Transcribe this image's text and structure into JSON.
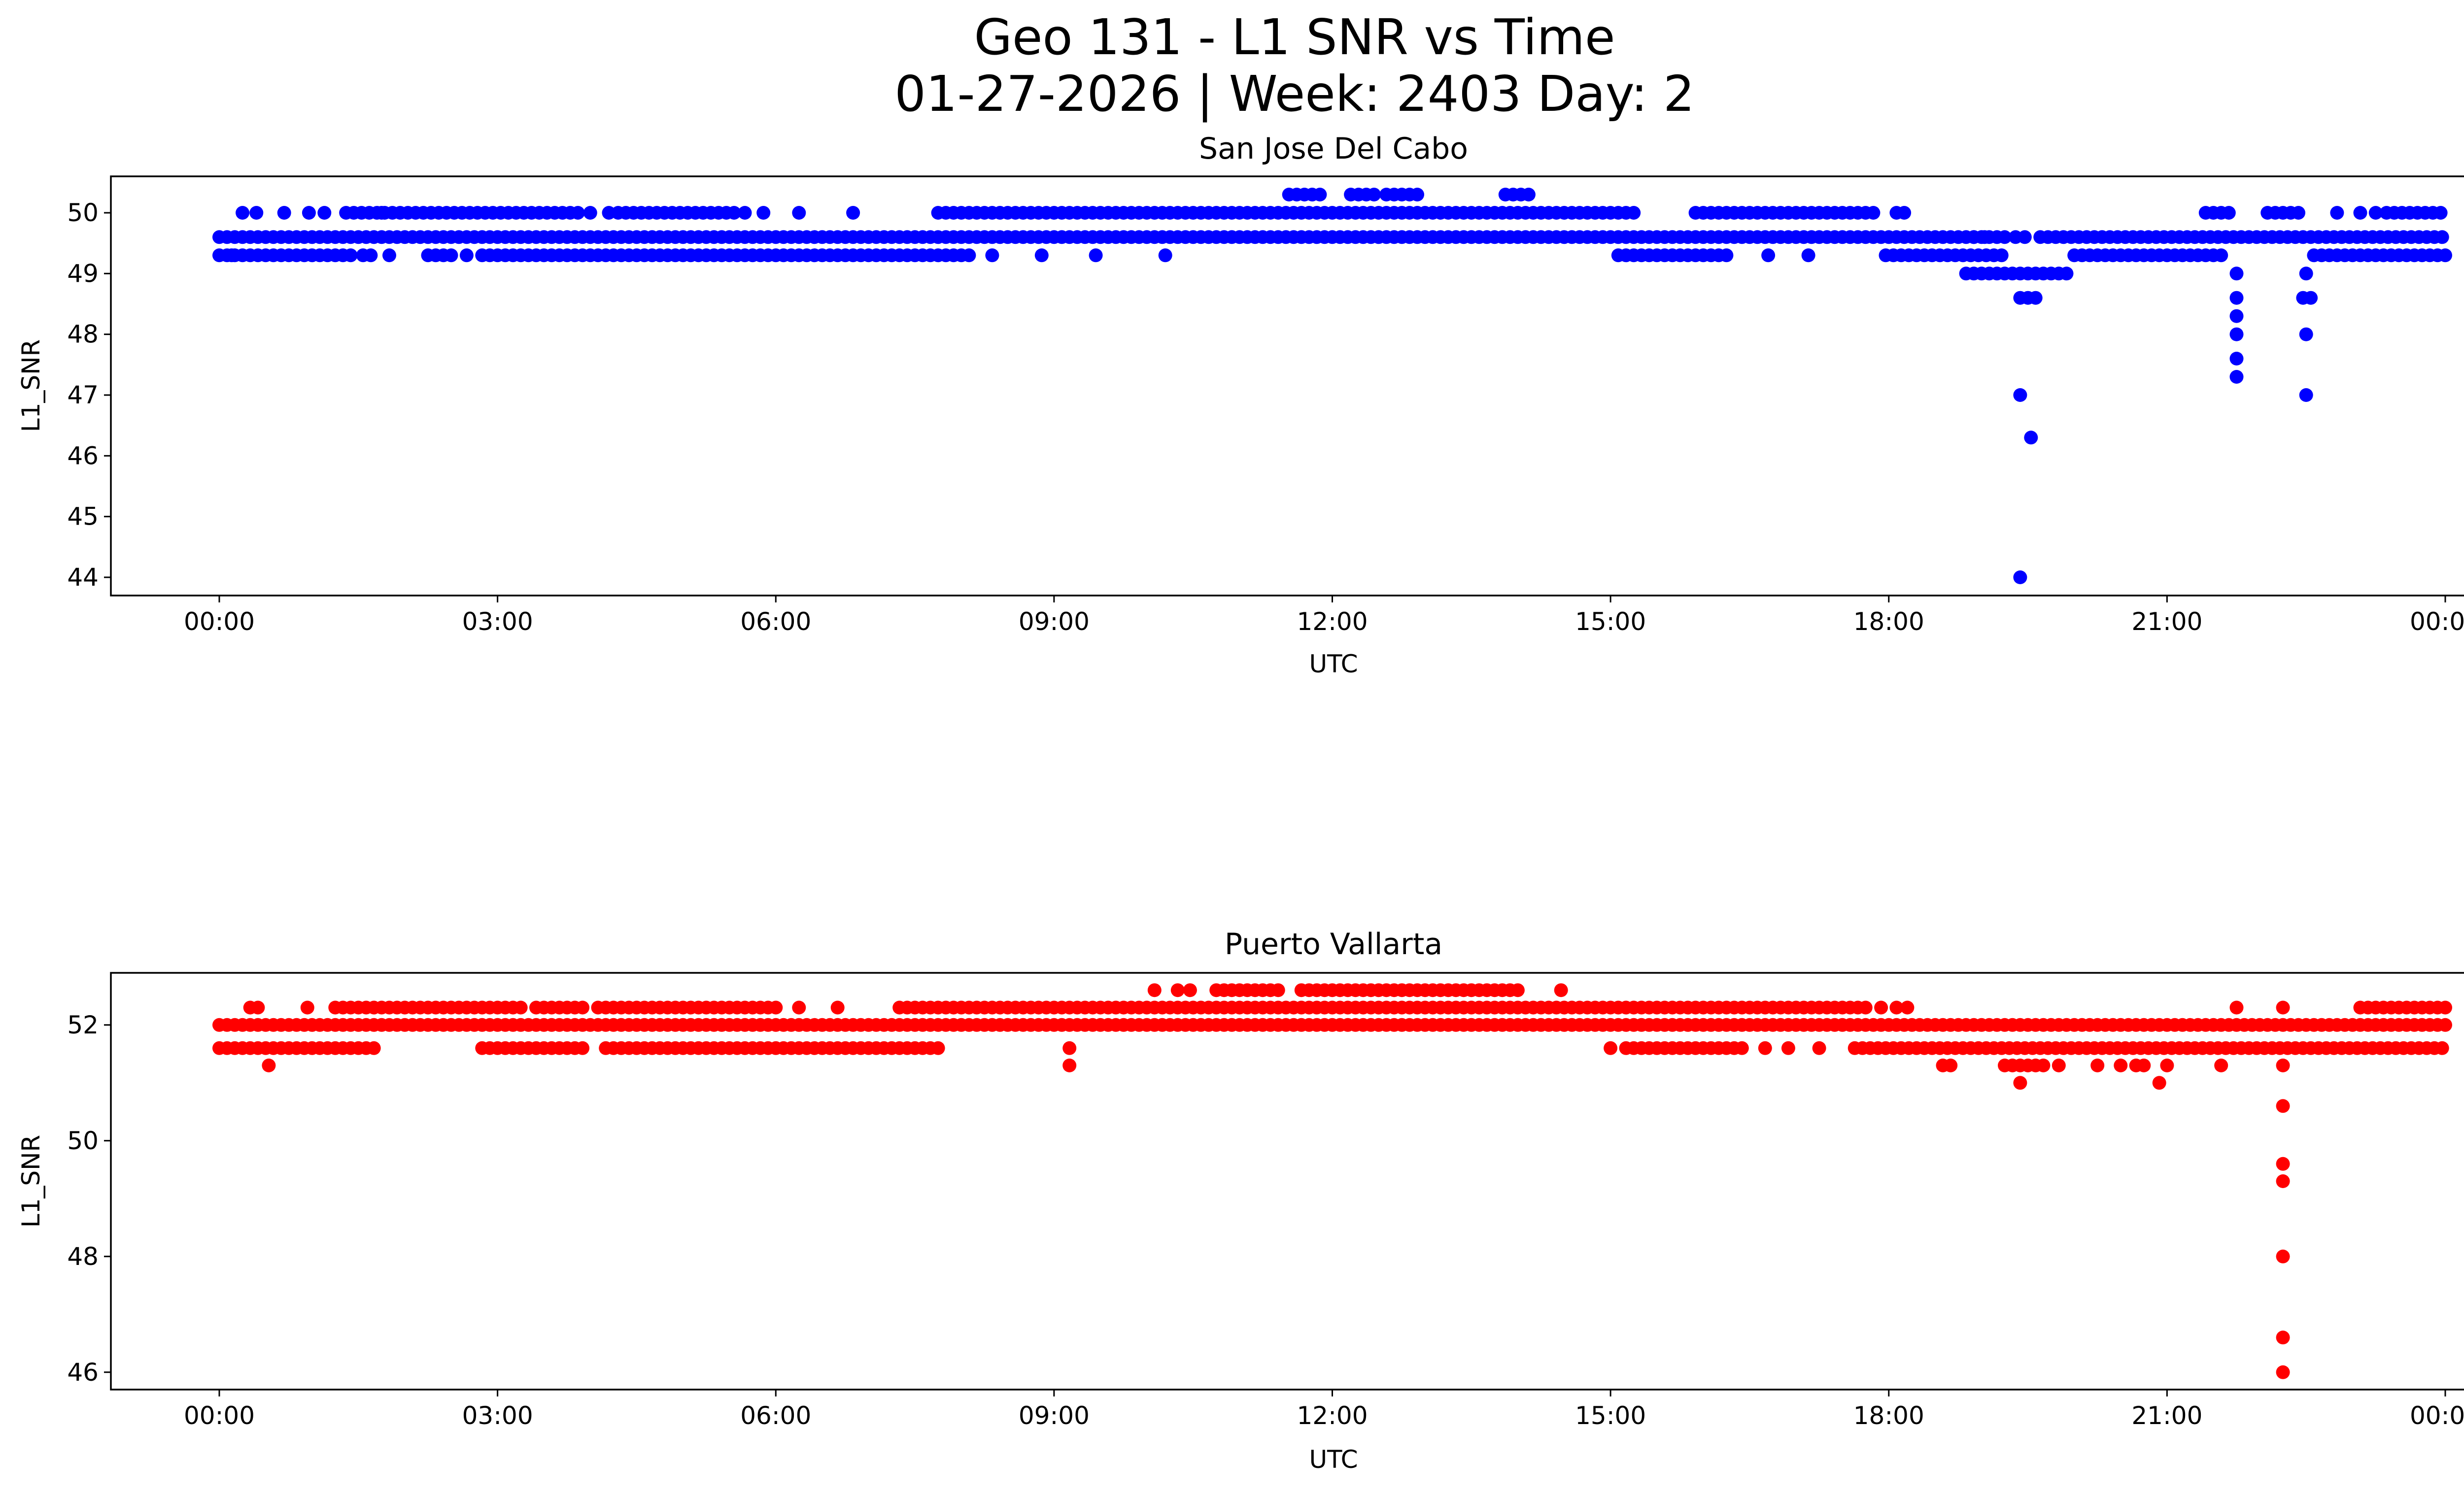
{
  "figure": {
    "title_line1": "Geo 131 - L1 SNR vs Time",
    "title_line2": "01-27-2026 | Week: 2403 Day: 2"
  },
  "chart_data": [
    {
      "type": "scatter",
      "title": "San Jose Del Cabo",
      "xlabel": "UTC",
      "ylabel": "L1_SNR",
      "color": "#0000ff",
      "xlim": [
        "2026-01-27T00:00",
        "2026-01-28T00:00"
      ],
      "ylim": [
        43.7,
        50.6
      ],
      "xticks": [
        "00:00",
        "03:00",
        "06:00",
        "09:00",
        "12:00",
        "15:00",
        "18:00",
        "21:00",
        "00:00"
      ],
      "yticks": [
        "44",
        "45",
        "46",
        "47",
        "48",
        "49",
        "50"
      ],
      "series": [
        {
          "bands": [
            {
              "y": 49.6,
              "segments": [
                [
                  "00:00",
                  "19:18"
                ],
                [
                  "19:38",
                  "24:00"
                ]
              ]
            },
            {
              "y": 49.3,
              "segments": [
                [
                  "00:00",
                  "01:28"
                ],
                [
                  "01:33",
                  "01:40"
                ],
                [
                  "02:20",
                  "02:30"
                ],
                [
                  "02:55",
                  "08:08"
                ],
                [
                  "15:05",
                  "16:15"
                ],
                [
                  "17:58",
                  "19:15"
                ],
                [
                  "20:00",
                  "21:35"
                ],
                [
                  "22:35",
                  "24:00"
                ]
              ]
            },
            {
              "y": 50.0,
              "segments": [
                [
                  "01:22",
                  "03:55"
                ],
                [
                  "04:18",
                  "05:35"
                ],
                [
                  "07:45",
                  "15:15"
                ],
                [
                  "15:55",
                  "17:50"
                ],
                [
                  "21:25",
                  "21:40"
                ],
                [
                  "22:05",
                  "22:25"
                ],
                [
                  "23:22",
                  "24:00"
                ]
              ]
            },
            {
              "y": 50.3,
              "segments": [
                [
                  "11:32",
                  "11:55"
                ],
                [
                  "12:12",
                  "12:30"
                ],
                [
                  "12:35",
                  "12:55"
                ],
                [
                  "13:52",
                  "14:10"
                ]
              ]
            },
            {
              "y": 49.0,
              "segments": [
                [
                  "18:50",
                  "19:55"
                ]
              ]
            },
            {
              "y": 48.6,
              "segments": [
                [
                  "19:25",
                  "19:35"
                ],
                [
                  "22:28",
                  "22:35"
                ]
              ]
            }
          ],
          "points": [
            [
              "00:08",
              49.3
            ],
            [
              "00:15",
              50.0
            ],
            [
              "00:24",
              50.0
            ],
            [
              "00:42",
              50.0
            ],
            [
              "00:58",
              50.0
            ],
            [
              "01:08",
              50.0
            ],
            [
              "01:45",
              50.0
            ],
            [
              "01:50",
              49.3
            ],
            [
              "02:15",
              49.3
            ],
            [
              "02:40",
              49.3
            ],
            [
              "02:50",
              49.3
            ],
            [
              "04:00",
              50.0
            ],
            [
              "04:12",
              50.0
            ],
            [
              "05:40",
              50.0
            ],
            [
              "05:52",
              50.0
            ],
            [
              "06:15",
              50.0
            ],
            [
              "06:50",
              50.0
            ],
            [
              "08:20",
              49.3
            ],
            [
              "08:52",
              49.3
            ],
            [
              "09:27",
              49.3
            ],
            [
              "10:12",
              49.3
            ],
            [
              "16:42",
              49.3
            ],
            [
              "17:08",
              49.3
            ],
            [
              "18:05",
              50.0
            ],
            [
              "18:10",
              50.0
            ],
            [
              "18:55",
              49.6
            ],
            [
              "19:02",
              49.6
            ],
            [
              "19:22",
              49.6
            ],
            [
              "19:28",
              49.6
            ],
            [
              "19:25",
              47.0
            ],
            [
              "19:25",
              44.0
            ],
            [
              "19:32",
              46.3
            ],
            [
              "21:45",
              49.0
            ],
            [
              "21:45",
              48.6
            ],
            [
              "21:45",
              48.3
            ],
            [
              "21:45",
              48.0
            ],
            [
              "21:45",
              47.6
            ],
            [
              "21:45",
              47.3
            ],
            [
              "22:30",
              49.0
            ],
            [
              "22:30",
              48.0
            ],
            [
              "22:30",
              47.0
            ],
            [
              "22:50",
              50.0
            ],
            [
              "23:05",
              50.0
            ],
            [
              "23:15",
              50.0
            ]
          ]
        }
      ]
    },
    {
      "type": "scatter",
      "title": "Puerto Vallarta",
      "xlabel": "UTC",
      "ylabel": "L1_SNR",
      "color": "#ff0000",
      "xlim": [
        "2026-01-27T00:00",
        "2026-01-28T00:00"
      ],
      "ylim": [
        45.7,
        52.9
      ],
      "xticks": [
        "00:00",
        "03:00",
        "06:00",
        "09:00",
        "12:00",
        "15:00",
        "18:00",
        "21:00",
        "00:00"
      ],
      "yticks": [
        "46",
        "48",
        "50",
        "52"
      ],
      "series": [
        {
          "bands": [
            {
              "y": 52.0,
              "segments": [
                [
                  "00:00",
                  "24:00"
                ]
              ]
            },
            {
              "y": 51.6,
              "segments": [
                [
                  "00:00",
                  "01:30"
                ],
                [
                  "02:55",
                  "03:55"
                ],
                [
                  "04:10",
                  "07:48"
                ],
                [
                  "15:10",
                  "16:28"
                ],
                [
                  "17:38",
                  "24:00"
                ]
              ]
            },
            {
              "y": 52.3,
              "segments": [
                [
                  "01:15",
                  "03:15"
                ],
                [
                  "03:25",
                  "03:55"
                ],
                [
                  "04:05",
                  "06:00"
                ],
                [
                  "07:25",
                  "17:45"
                ],
                [
                  "23:05",
                  "24:00"
                ]
              ]
            },
            {
              "y": 52.6,
              "segments": [
                [
                  "10:45",
                  "11:25"
                ],
                [
                  "11:40",
                  "13:58"
                ]
              ]
            },
            {
              "y": 51.3,
              "segments": [
                [
                  "19:15",
                  "19:40"
                ]
              ]
            }
          ],
          "points": [
            [
              "00:20",
              52.3
            ],
            [
              "00:25",
              52.3
            ],
            [
              "00:32",
              51.3
            ],
            [
              "00:57",
              52.3
            ],
            [
              "01:35",
              51.6
            ],
            [
              "01:40",
              51.6
            ],
            [
              "02:50",
              51.6
            ],
            [
              "06:15",
              52.3
            ],
            [
              "06:40",
              52.3
            ],
            [
              "07:20",
              52.3
            ],
            [
              "09:10",
              51.6
            ],
            [
              "09:10",
              51.3
            ],
            [
              "10:05",
              52.6
            ],
            [
              "10:20",
              52.6
            ],
            [
              "10:28",
              52.6
            ],
            [
              "14:00",
              52.6
            ],
            [
              "14:28",
              52.6
            ],
            [
              "15:00",
              51.6
            ],
            [
              "16:40",
              51.6
            ],
            [
              "16:55",
              51.6
            ],
            [
              "17:15",
              51.6
            ],
            [
              "17:55",
              52.3
            ],
            [
              "18:05",
              52.3
            ],
            [
              "18:12",
              52.3
            ],
            [
              "18:35",
              51.3
            ],
            [
              "18:40",
              51.3
            ],
            [
              "19:25",
              51.0
            ],
            [
              "19:50",
              51.3
            ],
            [
              "20:15",
              51.3
            ],
            [
              "20:30",
              51.3
            ],
            [
              "20:40",
              51.3
            ],
            [
              "20:45",
              51.3
            ],
            [
              "20:55",
              51.0
            ],
            [
              "21:00",
              51.3
            ],
            [
              "21:35",
              51.3
            ],
            [
              "21:45",
              52.3
            ],
            [
              "22:15",
              52.3
            ],
            [
              "22:15",
              51.3
            ],
            [
              "22:15",
              50.6
            ],
            [
              "22:15",
              49.6
            ],
            [
              "22:15",
              49.3
            ],
            [
              "22:15",
              48.0
            ],
            [
              "22:15",
              46.6
            ],
            [
              "22:15",
              46.0
            ]
          ]
        }
      ]
    }
  ]
}
